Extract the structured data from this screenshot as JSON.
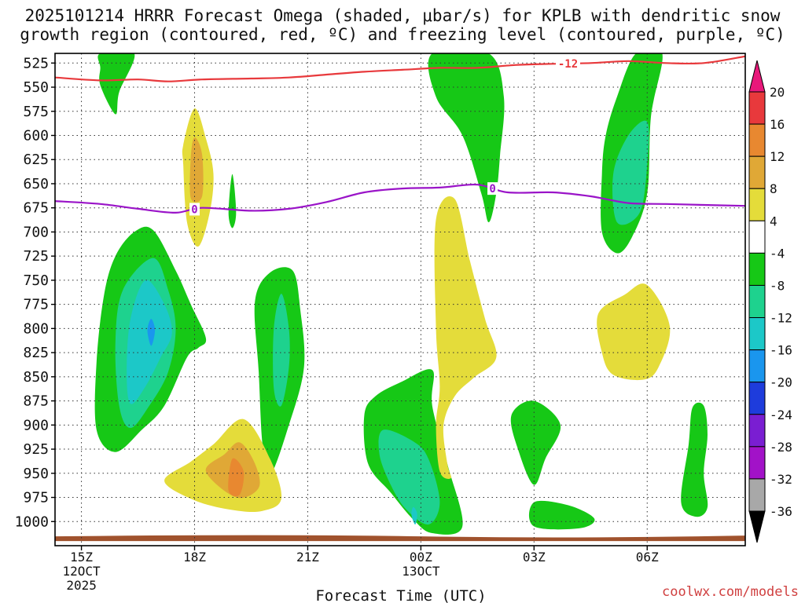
{
  "chart_data": {
    "type": "heatmap",
    "title_line1": "2025101214 HRRR Forecast Omega (shaded, μbar/s) for KPLB with dendritic snow",
    "title_line2": "growth region (contoured, red, ºC) and freezing level (contoured, purple, ºC)",
    "xlabel": "Forecast Time (UTC)",
    "credit": "coolwx.com/models",
    "x_range_hours": [
      14.3,
      32.6
    ],
    "y_range_hpa": [
      515,
      1025
    ],
    "y_ticks": [
      525,
      550,
      575,
      600,
      625,
      650,
      675,
      700,
      725,
      750,
      775,
      800,
      825,
      850,
      875,
      900,
      925,
      950,
      975,
      1000
    ],
    "x_ticks": [
      {
        "hour": 15,
        "label": "15Z",
        "sub1": "12OCT",
        "sub2": "2025"
      },
      {
        "hour": 18,
        "label": "18Z",
        "sub1": "",
        "sub2": ""
      },
      {
        "hour": 21,
        "label": "21Z",
        "sub1": "",
        "sub2": ""
      },
      {
        "hour": 24,
        "label": "00Z",
        "sub1": "13OCT",
        "sub2": ""
      },
      {
        "hour": 27,
        "label": "03Z",
        "sub1": "",
        "sub2": ""
      },
      {
        "hour": 30,
        "label": "06Z",
        "sub1": "",
        "sub2": ""
      }
    ],
    "colorbar": {
      "labels": [
        "20",
        "16",
        "12",
        "8",
        "4",
        "-4",
        "-8",
        "-12",
        "-16",
        "-20",
        "-24",
        "-28",
        "-32",
        "-36"
      ],
      "colors": [
        "#e8393c",
        "#e88830",
        "#e0a836",
        "#e4dc3a",
        "#ffffff",
        "#16c816",
        "#1ed28e",
        "#1cc8c8",
        "#1a96ee",
        "#1e3cdc",
        "#7a1ed2",
        "#a212c8",
        "#a8a8a8"
      ],
      "top_arrow_color": "#e8187a",
      "bottom_arrow_color": "#000000"
    },
    "freezing_level": {
      "label": "0",
      "color": "#9a14c8",
      "points": [
        [
          14.3,
          668
        ],
        [
          15.5,
          671
        ],
        [
          16.5,
          676
        ],
        [
          17.5,
          680
        ],
        [
          18.2,
          675
        ],
        [
          19.5,
          678
        ],
        [
          20.5,
          676
        ],
        [
          21.5,
          669
        ],
        [
          22.5,
          659
        ],
        [
          23.5,
          655
        ],
        [
          24.5,
          654
        ],
        [
          25.5,
          651
        ],
        [
          26.3,
          659
        ],
        [
          27.5,
          659
        ],
        [
          28.5,
          663
        ],
        [
          29.5,
          670
        ],
        [
          30.5,
          671
        ],
        [
          31.5,
          672
        ],
        [
          32.6,
          673
        ]
      ]
    },
    "dgz_top": {
      "label": "-12",
      "color": "#e8393c",
      "points": [
        [
          14.3,
          540
        ],
        [
          15.5,
          543
        ],
        [
          16.5,
          542
        ],
        [
          17.3,
          544
        ],
        [
          18.2,
          542
        ],
        [
          19.5,
          541
        ],
        [
          20.5,
          540
        ],
        [
          21.5,
          537
        ],
        [
          22.5,
          534
        ],
        [
          23.5,
          532
        ],
        [
          24.5,
          530
        ],
        [
          25.5,
          530
        ],
        [
          26.5,
          527
        ],
        [
          27.3,
          526
        ],
        [
          28.5,
          525
        ],
        [
          29.5,
          523
        ],
        [
          30.5,
          525
        ],
        [
          31.5,
          525
        ],
        [
          32.6,
          518
        ]
      ]
    },
    "ground": {
      "color": "#a0522d",
      "pressure": 1017
    },
    "omega_regions": [
      {
        "level": "-4",
        "color": "#16c816",
        "points": [
          [
            15.5,
            515
          ],
          [
            16.4,
            515
          ],
          [
            16.0,
            555
          ],
          [
            15.9,
            578
          ],
          [
            15.5,
            548
          ],
          [
            15.5,
            530
          ]
        ]
      },
      {
        "level": "4",
        "color": "#e4dc3a",
        "points": [
          [
            17.7,
            630
          ],
          [
            17.7,
            610
          ],
          [
            18.0,
            572
          ],
          [
            18.3,
            603
          ],
          [
            18.5,
            640
          ],
          [
            18.4,
            680
          ],
          [
            18.1,
            715
          ],
          [
            17.8,
            690
          ]
        ]
      },
      {
        "level": "8",
        "color": "#e0a836",
        "points": [
          [
            17.9,
            623
          ],
          [
            18.0,
            602
          ],
          [
            18.2,
            620
          ],
          [
            18.2,
            663
          ],
          [
            17.9,
            665
          ]
        ]
      },
      {
        "level": "-4",
        "color": "#16c816",
        "points": [
          [
            19.0,
            640
          ],
          [
            19.1,
            680
          ],
          [
            19.0,
            696
          ],
          [
            18.9,
            680
          ]
        ]
      },
      {
        "level": "-4",
        "color": "#16c816",
        "points": [
          [
            16.4,
            700
          ],
          [
            16.9,
            698
          ],
          [
            17.5,
            740
          ],
          [
            17.9,
            775
          ],
          [
            18.3,
            810
          ],
          [
            18.1,
            820
          ],
          [
            17.8,
            830
          ],
          [
            17.2,
            880
          ],
          [
            16.6,
            905
          ],
          [
            15.9,
            928
          ],
          [
            15.4,
            905
          ],
          [
            15.4,
            835
          ],
          [
            15.6,
            765
          ],
          [
            15.9,
            725
          ]
        ]
      },
      {
        "level": "-8",
        "color": "#1ed28e",
        "points": [
          [
            16.9,
            727
          ],
          [
            17.3,
            760
          ],
          [
            17.5,
            800
          ],
          [
            17.3,
            845
          ],
          [
            16.8,
            880
          ],
          [
            16.3,
            903
          ],
          [
            16.0,
            880
          ],
          [
            15.9,
            815
          ],
          [
            16.1,
            760
          ]
        ]
      },
      {
        "level": "-12",
        "color": "#1cc8c8",
        "points": [
          [
            16.7,
            750
          ],
          [
            17.2,
            775
          ],
          [
            17.4,
            805
          ],
          [
            17.1,
            830
          ],
          [
            16.7,
            860
          ],
          [
            16.3,
            878
          ],
          [
            16.2,
            845
          ],
          [
            16.3,
            790
          ]
        ]
      },
      {
        "level": "-16",
        "color": "#1a96ee",
        "points": [
          [
            16.85,
            790
          ],
          [
            16.95,
            802
          ],
          [
            16.85,
            818
          ],
          [
            16.75,
            802
          ]
        ]
      },
      {
        "level": "-4",
        "color": "#16c816",
        "points": [
          [
            20.0,
            742
          ],
          [
            20.6,
            740
          ],
          [
            20.8,
            780
          ],
          [
            20.9,
            840
          ],
          [
            20.5,
            900
          ],
          [
            20.0,
            952
          ],
          [
            19.8,
            920
          ],
          [
            19.7,
            845
          ],
          [
            19.6,
            772
          ]
        ]
      },
      {
        "level": "-8",
        "color": "#1ed28e",
        "points": [
          [
            20.3,
            764
          ],
          [
            20.5,
            800
          ],
          [
            20.5,
            840
          ],
          [
            20.3,
            880
          ],
          [
            20.1,
            862
          ],
          [
            20.1,
            800
          ]
        ]
      },
      {
        "level": "4",
        "color": "#e4dc3a",
        "points": [
          [
            17.2,
            958
          ],
          [
            17.9,
            938
          ],
          [
            18.5,
            920
          ],
          [
            19.3,
            894
          ],
          [
            20.0,
            935
          ],
          [
            20.3,
            976
          ],
          [
            19.8,
            989
          ],
          [
            19.0,
            988
          ],
          [
            18.0,
            978
          ]
        ]
      },
      {
        "level": "8",
        "color": "#e0a836",
        "points": [
          [
            18.3,
            948
          ],
          [
            18.8,
            930
          ],
          [
            19.2,
            918
          ],
          [
            19.6,
            940
          ],
          [
            19.7,
            965
          ],
          [
            19.1,
            975
          ]
        ]
      },
      {
        "level": "12",
        "color": "#e88830",
        "points": [
          [
            19.0,
            935
          ],
          [
            19.3,
            948
          ],
          [
            19.2,
            972
          ],
          [
            18.9,
            968
          ]
        ]
      },
      {
        "level": "-4",
        "color": "#16c816",
        "points": [
          [
            22.8,
            870
          ],
          [
            23.5,
            855
          ],
          [
            24.3,
            843
          ],
          [
            24.3,
            880
          ],
          [
            24.7,
            940
          ],
          [
            25.1,
            1005
          ],
          [
            24.3,
            1012
          ],
          [
            23.8,
            998
          ],
          [
            23.2,
            970
          ],
          [
            22.6,
            940
          ],
          [
            22.5,
            890
          ]
        ]
      },
      {
        "level": "-8",
        "color": "#1ed28e",
        "points": [
          [
            23.0,
            905
          ],
          [
            23.8,
            917
          ],
          [
            24.2,
            935
          ],
          [
            24.5,
            980
          ],
          [
            24.2,
            1003
          ],
          [
            23.6,
            987
          ],
          [
            23.2,
            962
          ],
          [
            22.9,
            930
          ]
        ]
      },
      {
        "level": "-12",
        "color": "#1cc8c8",
        "points": [
          [
            23.8,
            985
          ],
          [
            23.9,
            992
          ],
          [
            23.85,
            1003
          ],
          [
            23.75,
            993
          ]
        ]
      },
      {
        "level": "-4",
        "color": "#16c816",
        "points": [
          [
            24.3,
            515
          ],
          [
            25.8,
            515
          ],
          [
            26.2,
            560
          ],
          [
            26.1,
            620
          ],
          [
            26.0,
            660
          ],
          [
            25.8,
            690
          ],
          [
            25.6,
            660
          ],
          [
            25.1,
            600
          ],
          [
            24.4,
            560
          ]
        ]
      },
      {
        "level": "4",
        "color": "#e4dc3a",
        "points": [
          [
            24.4,
            687
          ],
          [
            24.9,
            666
          ],
          [
            25.3,
            730
          ],
          [
            25.7,
            790
          ],
          [
            26.0,
            830
          ],
          [
            25.4,
            851
          ],
          [
            24.9,
            870
          ],
          [
            24.6,
            900
          ],
          [
            24.7,
            940
          ],
          [
            24.8,
            955
          ],
          [
            24.5,
            948
          ],
          [
            24.4,
            900
          ],
          [
            24.5,
            860
          ],
          [
            24.4,
            800
          ]
        ]
      },
      {
        "level": "-4",
        "color": "#16c816",
        "points": [
          [
            29.7,
            515
          ],
          [
            30.4,
            515
          ],
          [
            30.1,
            580
          ],
          [
            30.0,
            660
          ],
          [
            29.6,
            705
          ],
          [
            29.2,
            722
          ],
          [
            28.8,
            700
          ],
          [
            28.8,
            640
          ],
          [
            28.9,
            600
          ],
          [
            29.2,
            560
          ]
        ]
      },
      {
        "level": "-8",
        "color": "#1ed28e",
        "points": [
          [
            29.5,
            600
          ],
          [
            30.0,
            586
          ],
          [
            30.0,
            630
          ],
          [
            29.8,
            680
          ],
          [
            29.2,
            690
          ],
          [
            29.1,
            640
          ]
        ]
      },
      {
        "level": "4",
        "color": "#e4dc3a",
        "points": [
          [
            28.7,
            785
          ],
          [
            29.4,
            765
          ],
          [
            30.0,
            755
          ],
          [
            30.6,
            798
          ],
          [
            30.3,
            840
          ],
          [
            29.9,
            853
          ],
          [
            29.1,
            848
          ],
          [
            28.8,
            825
          ]
        ]
      },
      {
        "level": "-4",
        "color": "#16c816",
        "points": [
          [
            26.4,
            890
          ],
          [
            27.0,
            875
          ],
          [
            27.7,
            900
          ],
          [
            27.3,
            935
          ],
          [
            27.0,
            962
          ],
          [
            26.6,
            928
          ]
        ]
      },
      {
        "level": "-4",
        "color": "#16c816",
        "points": [
          [
            27.0,
            980
          ],
          [
            27.9,
            983
          ],
          [
            28.6,
            997
          ],
          [
            28.2,
            1007
          ],
          [
            27.0,
            1005
          ]
        ]
      },
      {
        "level": "-4",
        "color": "#16c816",
        "points": [
          [
            31.2,
            882
          ],
          [
            31.5,
            880
          ],
          [
            31.6,
            910
          ],
          [
            31.5,
            950
          ],
          [
            31.6,
            985
          ],
          [
            31.3,
            995
          ],
          [
            30.9,
            980
          ],
          [
            31.1,
            920
          ]
        ]
      }
    ]
  }
}
